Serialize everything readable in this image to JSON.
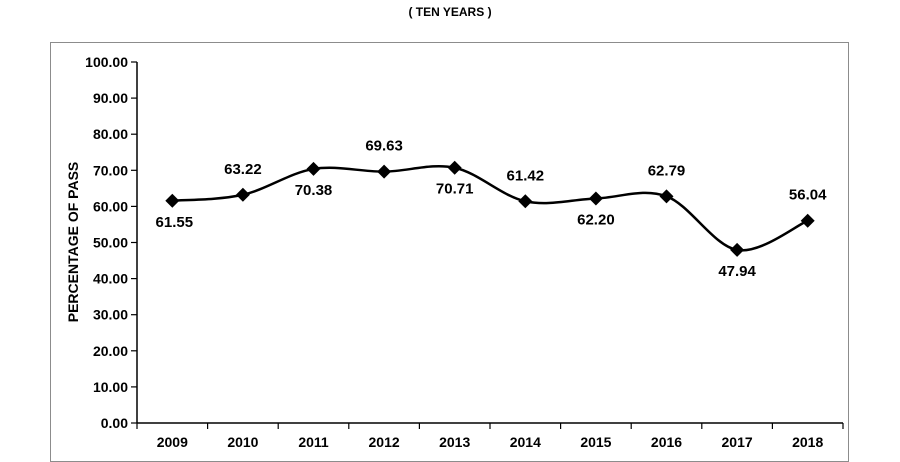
{
  "chart_data": {
    "type": "line",
    "title": "( TEN YEARS )",
    "xlabel": "",
    "ylabel": "PERCENTAGE OF PASS",
    "categories": [
      "2009",
      "2010",
      "2011",
      "2012",
      "2013",
      "2014",
      "2015",
      "2016",
      "2017",
      "2018"
    ],
    "series": [
      {
        "values": [
          61.55,
          63.22,
          70.38,
          69.63,
          70.71,
          61.42,
          62.2,
          62.79,
          47.94,
          56.04
        ],
        "labels": [
          "61.55",
          "63.22",
          "70.38",
          "69.63",
          "70.71",
          "61.42",
          "62.20",
          "62.79",
          "47.94",
          "56.04"
        ]
      }
    ],
    "ylim": [
      0,
      100
    ],
    "yticks": [
      0,
      10,
      20,
      30,
      40,
      50,
      60,
      70,
      80,
      90,
      100
    ],
    "ytick_labels": [
      "0.00",
      "10.00",
      "20.00",
      "30.00",
      "40.00",
      "50.00",
      "60.00",
      "70.00",
      "80.00",
      "90.00",
      "100.00"
    ],
    "grid": false,
    "legend": "none",
    "line_color": "#000000",
    "marker": "diamond"
  }
}
